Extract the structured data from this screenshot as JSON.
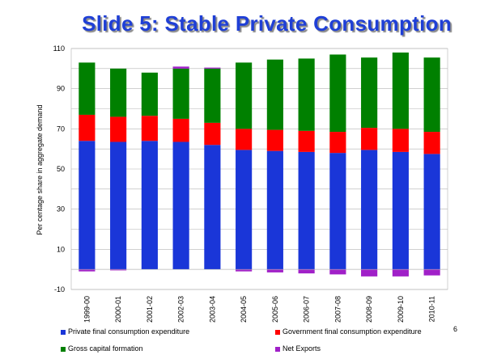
{
  "slide": {
    "title": "Slide 5: Stable Private Consumption",
    "page_number": "6"
  },
  "colors": {
    "private": "#1a36d8",
    "government": "#ff0000",
    "gross_capital": "#008000",
    "net_exports": "#a020c8",
    "title": "#1f3fd6"
  },
  "chart_data": {
    "type": "bar",
    "stacked": true,
    "categories": [
      "1999-00",
      "2000-01",
      "2001-02",
      "2002-03",
      "2003-04",
      "2004-05",
      "2005-06",
      "2006-07",
      "2007-08",
      "2008-09",
      "2009-10",
      "2010-11"
    ],
    "series": [
      {
        "name": "Private final consumption expenditure",
        "values": [
          64,
          63.5,
          64,
          63.5,
          62,
          59.5,
          59,
          58.5,
          58,
          59.5,
          58.5,
          57.5
        ]
      },
      {
        "name": "Government final consumption expenditure",
        "values": [
          13,
          12.5,
          12.5,
          11.5,
          11,
          10.5,
          10.5,
          10.5,
          10.5,
          11,
          11.5,
          11
        ]
      },
      {
        "name": "Gross capital formation",
        "values": [
          26,
          24,
          21.5,
          25,
          27,
          33,
          35,
          36,
          38.5,
          35,
          38,
          37
        ]
      },
      {
        "name": "Net Exports",
        "values": [
          -1,
          -0.5,
          0,
          1,
          0.5,
          -1,
          -1.5,
          -2,
          -2.5,
          -3.5,
          -3.5,
          -3
        ]
      }
    ],
    "ylabel": "Per centage share in aggregate demand",
    "xlabel": "",
    "ylim": [
      -10,
      110
    ],
    "yticks": [
      -10,
      10,
      30,
      50,
      70,
      90,
      110
    ],
    "grid": true,
    "legend": "bottom"
  },
  "legend": [
    {
      "label": "Private final consumption expenditure",
      "color_key": "private"
    },
    {
      "label": "Government final consumption expenditure",
      "color_key": "government"
    },
    {
      "label": "Gross capital formation",
      "color_key": "gross_capital"
    },
    {
      "label": "Net Exports",
      "color_key": "net_exports"
    }
  ]
}
